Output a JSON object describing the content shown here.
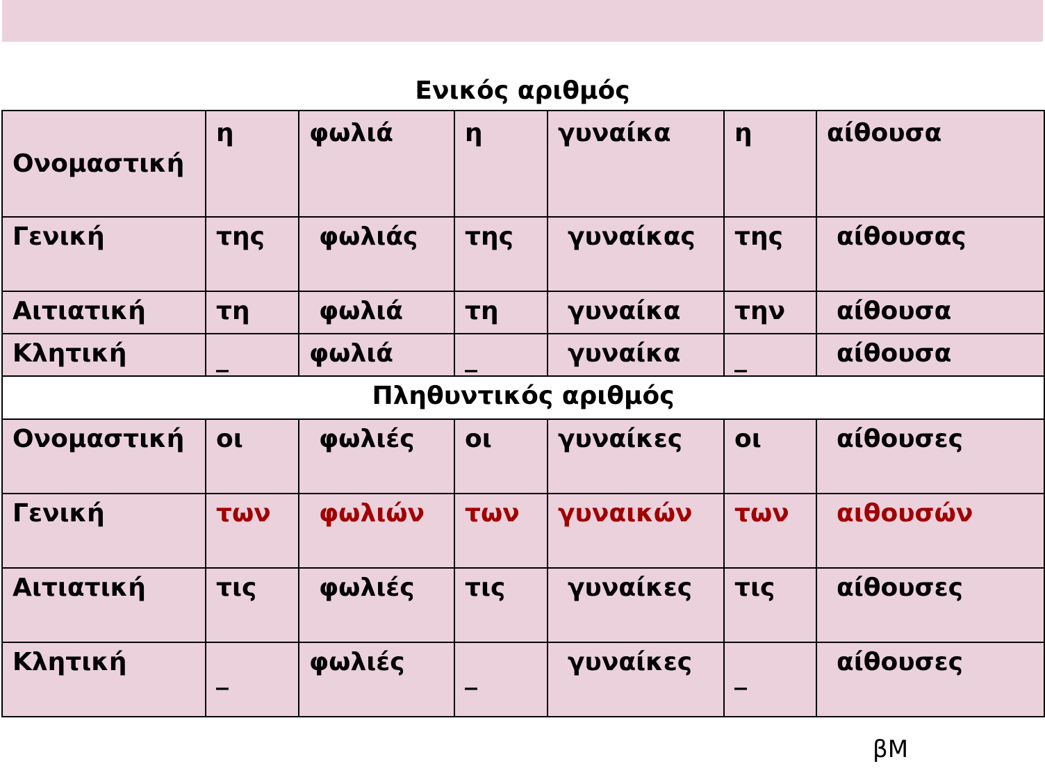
{
  "singular_title": "Ενικός αριθμός",
  "plural_title": "Πληθυντικός αριθμός",
  "singular": [
    {
      "case": "Ονομαστική",
      "cells": [
        "η",
        "φωλιά",
        "η",
        "γυναίκα",
        "η",
        "αίθουσα"
      ]
    },
    {
      "case": "Γενική",
      "cells": [
        "της",
        "φωλιάς",
        "της",
        "γυναίκας",
        "της",
        "αίθουσας"
      ]
    },
    {
      "case": "Αιτιατική",
      "cells": [
        "τη",
        "φωλιά",
        "τη",
        "γυναίκα",
        "την",
        "αίθουσα"
      ]
    },
    {
      "case": "Κλητική",
      "cells": [
        "_",
        "φωλιά",
        "_",
        "γυναίκα",
        "_",
        "αίθουσα"
      ]
    }
  ],
  "plural": [
    {
      "case": "Ονομαστική",
      "cells": [
        "οι",
        "φωλιές",
        "οι",
        "γυναίκες",
        "οι",
        "αίθουσες"
      ]
    },
    {
      "case": "Γενική",
      "cells": [
        "των",
        "φωλιών",
        "των",
        "γυναικών",
        "των",
        "αιθουσών"
      ]
    },
    {
      "case": "Αιτιατική",
      "cells": [
        "τις",
        "φωλιές",
        "τις",
        "γυναίκες",
        "τις",
        "αίθουσες"
      ]
    },
    {
      "case": "Κλητική",
      "cells": [
        "_",
        "φωλιές",
        "_",
        "γυναίκες",
        "_",
        "αίθουσες"
      ]
    }
  ],
  "highlight_color": "#a00000",
  "footer_mark": "βΜ"
}
